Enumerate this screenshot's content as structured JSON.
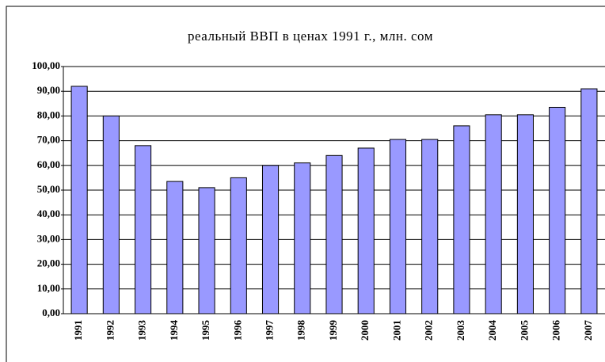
{
  "chart_data": {
    "type": "bar",
    "title": "реальный ВВП в ценах 1991 г., млн. сом",
    "categories": [
      "1991",
      "1992",
      "1993",
      "1994",
      "1995",
      "1996",
      "1997",
      "1998",
      "1999",
      "2000",
      "2001",
      "2002",
      "2003",
      "2004",
      "2005",
      "2006",
      "2007"
    ],
    "values": [
      92,
      80,
      68,
      53.5,
      51,
      55,
      60,
      61,
      64,
      67,
      70.5,
      70.5,
      76,
      80.5,
      80.5,
      83.5,
      91
    ],
    "color": "#9999ff",
    "ylim": [
      0,
      100
    ],
    "yticks": [
      {
        "value": 0,
        "label": "0,00"
      },
      {
        "value": 10,
        "label": "10,00"
      },
      {
        "value": 20,
        "label": "20,00"
      },
      {
        "value": 30,
        "label": "30,00"
      },
      {
        "value": 40,
        "label": "40,00"
      },
      {
        "value": 50,
        "label": "50,00"
      },
      {
        "value": 60,
        "label": "60,00"
      },
      {
        "value": 70,
        "label": "70,00"
      },
      {
        "value": 80,
        "label": "80,00"
      },
      {
        "value": 90,
        "label": "90,00"
      },
      {
        "value": 100,
        "label": "100,00"
      }
    ],
    "grid": true
  }
}
